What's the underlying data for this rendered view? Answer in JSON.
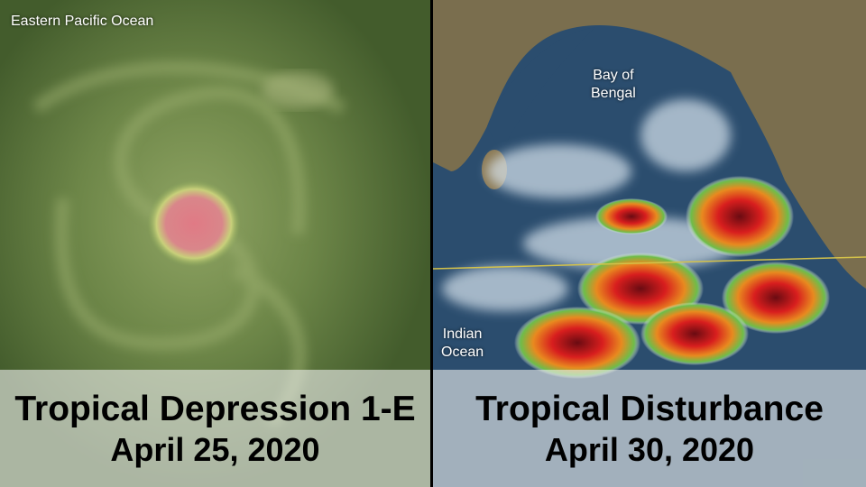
{
  "panels": [
    {
      "location": "Eastern Pacific Ocean",
      "title": "Tropical Depression 1-E",
      "date": "April 25, 2020"
    },
    {
      "labels": [
        {
          "lines": [
            "Bay of",
            "Bengal"
          ]
        },
        {
          "lines": [
            "Indian",
            "Ocean"
          ]
        }
      ],
      "title": "Tropical Disturbance",
      "date": "April 30, 2020"
    }
  ]
}
